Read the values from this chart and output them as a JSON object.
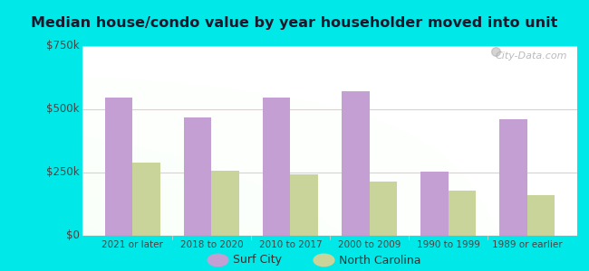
{
  "title": "Median house/condo value by year householder moved into unit",
  "categories": [
    "2021 or later",
    "2018 to 2020",
    "2010 to 2017",
    "2000 to 2009",
    "1990 to 1999",
    "1989 or earlier"
  ],
  "surf_city": [
    545000,
    468000,
    545000,
    570000,
    252000,
    462000
  ],
  "north_carolina": [
    290000,
    258000,
    242000,
    215000,
    178000,
    160000
  ],
  "surf_city_color": "#c39fd4",
  "north_carolina_color": "#c9d49a",
  "bg_outer": "#00e8e8",
  "ylim": [
    0,
    750000
  ],
  "yticks": [
    0,
    250000,
    500000,
    750000
  ],
  "ytick_labels": [
    "$0",
    "$250k",
    "$500k",
    "$750k"
  ],
  "bar_width": 0.35,
  "legend_surf_city": "Surf City",
  "legend_nc": "North Carolina",
  "watermark": "City-Data.com"
}
